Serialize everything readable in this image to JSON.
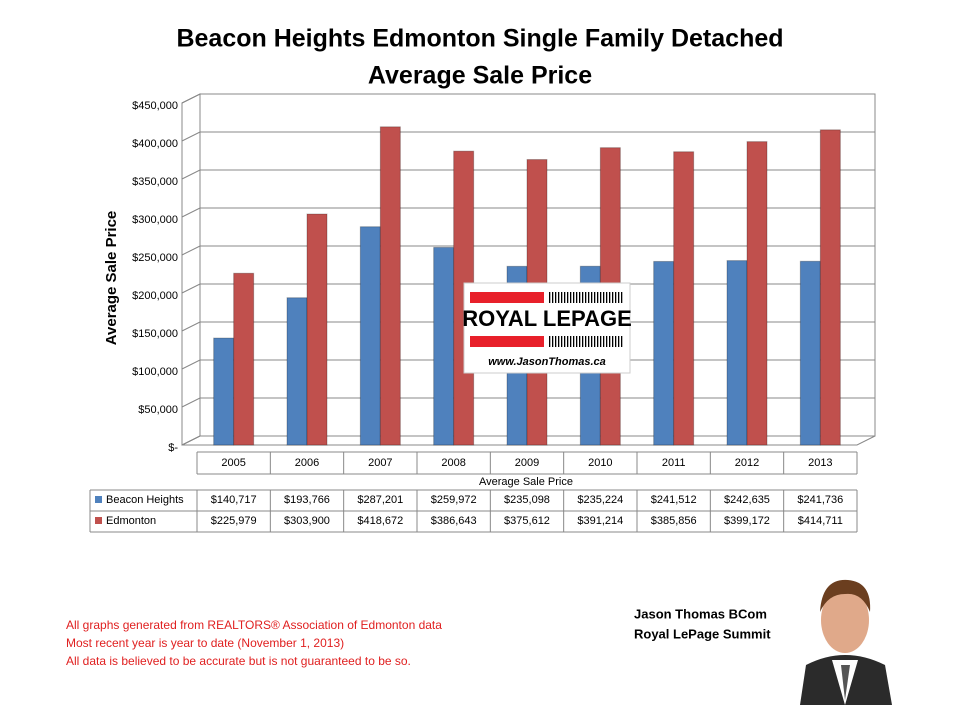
{
  "chart_data": {
    "type": "bar",
    "title": "Beacon Heights Edmonton Single Family Detached",
    "subtitle": "Average Sale Price",
    "y_label": "Average Sale Price",
    "x_label": "Average Sale Price",
    "categories": [
      "2005",
      "2006",
      "2007",
      "2008",
      "2009",
      "2010",
      "2011",
      "2012",
      "2013"
    ],
    "series": [
      {
        "name": "Beacon Heights",
        "color": "#4f81bd",
        "values": [
          140717,
          193766,
          287201,
          259972,
          235098,
          235224,
          241512,
          242635,
          241736
        ],
        "value_labels": [
          "$140,717",
          "$193,766",
          "$287,201",
          "$259,972",
          "$235,098",
          "$235,224",
          "$241,512",
          "$242,635",
          "$241,736"
        ]
      },
      {
        "name": "Edmonton",
        "color": "#c0504d",
        "values": [
          225979,
          303900,
          418672,
          386643,
          375612,
          391214,
          385856,
          399172,
          414711
        ],
        "value_labels": [
          "$225,979",
          "$303,900",
          "$418,672",
          "$386,643",
          "$375,612",
          "$391,214",
          "$385,856",
          "$399,172",
          "$414,711"
        ]
      }
    ],
    "ylim": [
      0,
      450000
    ],
    "yticks": [
      {
        "value": 0,
        "label": "$-"
      },
      {
        "value": 50000,
        "label": "$50,000"
      },
      {
        "value": 100000,
        "label": "$100,000"
      },
      {
        "value": 150000,
        "label": "$150,000"
      },
      {
        "value": 200000,
        "label": "$200,000"
      },
      {
        "value": 250000,
        "label": "$250,000"
      },
      {
        "value": 300000,
        "label": "$300,000"
      },
      {
        "value": 350000,
        "label": "$350,000"
      },
      {
        "value": 400000,
        "label": "$400,000"
      },
      {
        "value": 450000,
        "label": "$450,000"
      }
    ],
    "grid": true
  },
  "logo": {
    "brand": "ROYAL LEPAGE",
    "url": "www.JasonThomas.ca"
  },
  "notes": [
    "All graphs generated from REALTORS® Association of Edmonton data",
    "Most recent year is year to date (November 1, 2013)",
    "All data is believed to be accurate but is not guaranteed to be so."
  ],
  "author": {
    "name": "Jason Thomas BCom",
    "company": "Royal LePage Summit"
  }
}
